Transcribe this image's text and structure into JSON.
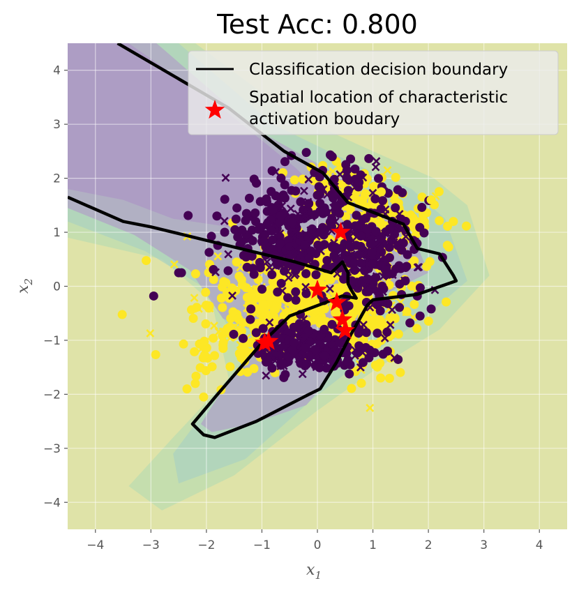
{
  "chart_data": {
    "type": "scatter",
    "title": "Test Acc: 0.800",
    "xlabel": "x",
    "xlabel_sub": "1",
    "ylabel": "x",
    "ylabel_sub": "2",
    "xlim": [
      -4.5,
      4.5
    ],
    "ylim": [
      -4.5,
      4.5
    ],
    "xticks": [
      -4,
      -3,
      -2,
      -1,
      0,
      1,
      2,
      3,
      4
    ],
    "yticks": [
      -4,
      -3,
      -2,
      -1,
      0,
      1,
      2,
      3,
      4
    ],
    "xtick_labels": [
      "−4",
      "−3",
      "−2",
      "−1",
      "0",
      "1",
      "2",
      "3",
      "4"
    ],
    "ytick_labels": [
      "−4",
      "−3",
      "−2",
      "−1",
      "0",
      "1",
      "2",
      "3",
      "4"
    ],
    "grid": true,
    "legend_position": "top-right",
    "legend": [
      {
        "label": "Classification decision boundary",
        "marker": "line"
      },
      {
        "label": "Spatial location of characteristic",
        "label2": "activation boudary",
        "marker": "star"
      }
    ],
    "colors": {
      "background": "#dfe3a8",
      "class0": "#440154",
      "class1": "#fde725",
      "boundary": "#000000",
      "star": "#ff0000",
      "contour_light": "#bcdcb0",
      "contour_mid": "#a9d2c0",
      "contour_dark": "#b0a3c6",
      "contour_darkest": "#ad98c4"
    },
    "clusters": [
      {
        "class": 0,
        "center": [
          -0.5,
          0.9
        ],
        "spread": [
          0.55,
          0.45
        ],
        "count": 260
      },
      {
        "class": 0,
        "center": [
          1.0,
          0.5
        ],
        "spread": [
          0.4,
          0.55
        ],
        "count": 200
      },
      {
        "class": 0,
        "center": [
          -0.05,
          -1.15
        ],
        "spread": [
          0.55,
          0.25
        ],
        "count": 240
      },
      {
        "class": 0,
        "center": [
          0.3,
          1.9
        ],
        "spread": [
          0.5,
          0.3
        ],
        "count": 60
      },
      {
        "class": 1,
        "center": [
          -0.3,
          -0.1
        ],
        "spread": [
          0.8,
          0.5
        ],
        "count": 480
      },
      {
        "class": 1,
        "center": [
          1.3,
          1.2
        ],
        "spread": [
          0.5,
          0.3
        ],
        "count": 110
      },
      {
        "class": 1,
        "center": [
          0.5,
          1.8
        ],
        "spread": [
          0.5,
          0.25
        ],
        "count": 70
      },
      {
        "class": 1,
        "center": [
          1.0,
          -0.8
        ],
        "spread": [
          0.35,
          0.45
        ],
        "count": 90
      },
      {
        "class": 1,
        "center": [
          -1.5,
          -1.0
        ],
        "spread": [
          0.45,
          0.35
        ],
        "count": 90
      }
    ],
    "outliers": [
      {
        "class": 0,
        "x": -2.95,
        "y": -0.18
      },
      {
        "class": 0,
        "x": -2.5,
        "y": 0.25
      },
      {
        "class": 0,
        "x": -2.45,
        "y": 0.25
      },
      {
        "class": 0,
        "x": -1.45,
        "y": 1.45
      },
      {
        "class": 0,
        "x": 2.05,
        "y": -0.42
      },
      {
        "class": 0,
        "x": 1.85,
        "y": -0.55
      },
      {
        "class": 0,
        "x": 1.8,
        "y": -0.18
      },
      {
        "class": 1,
        "x": -2.05,
        "y": -2.05
      },
      {
        "class": 1,
        "x": -2.2,
        "y": -1.8
      },
      {
        "class": 1,
        "x": -2.35,
        "y": -1.9
      },
      {
        "class": 1,
        "x": 2.05,
        "y": 1.6
      },
      {
        "class": 1,
        "x": 2.45,
        "y": 1.2
      },
      {
        "class": 1,
        "x": 1.15,
        "y": 1.75
      }
    ],
    "boundaries": [
      [
        [
          -3.6,
          4.5
        ],
        [
          -1.6,
          3.3
        ],
        [
          -0.6,
          2.5
        ],
        [
          0.1,
          2.1
        ],
        [
          0.55,
          1.55
        ],
        [
          1.05,
          1.35
        ],
        [
          1.55,
          1.15
        ],
        [
          1.8,
          0.7
        ],
        [
          2.2,
          0.6
        ],
        [
          2.45,
          0.2
        ],
        [
          2.5,
          0.1
        ],
        [
          1.8,
          -0.15
        ],
        [
          1.0,
          -0.25
        ],
        [
          0.9,
          -0.35
        ],
        [
          0.6,
          -0.9
        ],
        [
          0.35,
          -1.4
        ],
        [
          0.05,
          -1.9
        ],
        [
          -0.15,
          -2.0
        ],
        [
          -1.1,
          -2.5
        ],
        [
          -1.85,
          -2.8
        ],
        [
          -2.05,
          -2.75
        ],
        [
          -2.25,
          -2.55
        ],
        [
          -1.8,
          -2.0
        ],
        [
          -1.0,
          -1.05
        ],
        [
          -0.5,
          -0.55
        ],
        [
          0.15,
          -0.3
        ],
        [
          0.45,
          -0.18
        ],
        [
          0.7,
          -0.22
        ],
        [
          0.6,
          -0.05
        ],
        [
          0.55,
          0.05
        ],
        [
          0.55,
          0.25
        ],
        [
          0.45,
          0.45
        ],
        [
          0.25,
          0.25
        ],
        [
          -0.4,
          0.45
        ],
        [
          -2.0,
          0.85
        ],
        [
          -3.0,
          1.1
        ],
        [
          -3.5,
          1.2
        ],
        [
          -4.5,
          1.65
        ]
      ]
    ],
    "stars": [
      {
        "x": 0.42,
        "y": 1.0
      },
      {
        "x": 0.0,
        "y": -0.07
      },
      {
        "x": 0.35,
        "y": -0.3
      },
      {
        "x": 0.45,
        "y": -0.62
      },
      {
        "x": 0.5,
        "y": -0.82
      },
      {
        "x": -0.88,
        "y": -1.02
      },
      {
        "x": -0.95,
        "y": -1.05
      }
    ],
    "contours": [
      {
        "level": "light",
        "points": [
          [
            -4.5,
            4.5
          ],
          [
            -2.2,
            4.5
          ],
          [
            -0.5,
            3.2
          ],
          [
            1.0,
            2.5
          ],
          [
            2.1,
            2.0
          ],
          [
            2.7,
            1.5
          ],
          [
            3.1,
            0.2
          ],
          [
            2.2,
            -0.8
          ],
          [
            1.1,
            -1.5
          ],
          [
            0.0,
            -2.3
          ],
          [
            -1.5,
            -3.5
          ],
          [
            -2.8,
            -4.15
          ],
          [
            -3.4,
            -3.7
          ],
          [
            -2.6,
            -2.8
          ],
          [
            -1.6,
            -1.7
          ],
          [
            -1.9,
            -0.3
          ],
          [
            -2.8,
            0.5
          ],
          [
            -4.5,
            0.9
          ]
        ]
      },
      {
        "level": "mid",
        "points": [
          [
            -4.5,
            4.5
          ],
          [
            -2.5,
            4.5
          ],
          [
            -0.8,
            3.0
          ],
          [
            0.6,
            2.3
          ],
          [
            1.7,
            1.8
          ],
          [
            2.3,
            1.25
          ],
          [
            2.7,
            0.1
          ],
          [
            1.9,
            -0.6
          ],
          [
            0.9,
            -1.3
          ],
          [
            -0.1,
            -2.1
          ],
          [
            -1.3,
            -3.2
          ],
          [
            -2.5,
            -3.65
          ],
          [
            -2.6,
            -3.1
          ],
          [
            -1.8,
            -2.0
          ],
          [
            -1.3,
            -1.3
          ],
          [
            -2.0,
            -0.05
          ],
          [
            -3.1,
            0.65
          ],
          [
            -4.5,
            1.2
          ]
        ]
      },
      {
        "level": "dark",
        "points": [
          [
            -4.5,
            4.5
          ],
          [
            -2.9,
            4.5
          ],
          [
            -1.1,
            2.9
          ],
          [
            0.3,
            2.1
          ],
          [
            1.1,
            1.5
          ],
          [
            1.7,
            1.0
          ],
          [
            2.0,
            0.25
          ],
          [
            1.2,
            -0.15
          ],
          [
            0.5,
            -0.55
          ],
          [
            -0.2,
            -0.8
          ],
          [
            -0.95,
            -0.9
          ],
          [
            -1.7,
            -0.6
          ],
          [
            -2.3,
            0.3
          ],
          [
            -3.3,
            0.95
          ],
          [
            -4.5,
            1.45
          ]
        ]
      },
      {
        "level": "darkest",
        "points": [
          [
            -4.5,
            4.5
          ],
          [
            -3.4,
            4.5
          ],
          [
            -1.6,
            3.2
          ],
          [
            -0.4,
            2.2
          ],
          [
            0.2,
            1.6
          ],
          [
            -0.4,
            1.2
          ],
          [
            -1.6,
            1.1
          ],
          [
            -2.6,
            1.25
          ],
          [
            -3.5,
            1.6
          ],
          [
            -4.5,
            1.8
          ]
        ]
      },
      {
        "level": "dark",
        "points": [
          [
            -1.9,
            -2.7
          ],
          [
            -1.2,
            -2.55
          ],
          [
            -0.2,
            -2.2
          ],
          [
            0.05,
            -1.9
          ],
          [
            0.4,
            -1.35
          ],
          [
            0.75,
            -0.9
          ],
          [
            0.95,
            -0.45
          ],
          [
            0.5,
            -0.35
          ],
          [
            -0.3,
            -0.75
          ],
          [
            -1.1,
            -1.2
          ],
          [
            -1.7,
            -1.9
          ],
          [
            -2.1,
            -2.55
          ]
        ]
      }
    ]
  }
}
